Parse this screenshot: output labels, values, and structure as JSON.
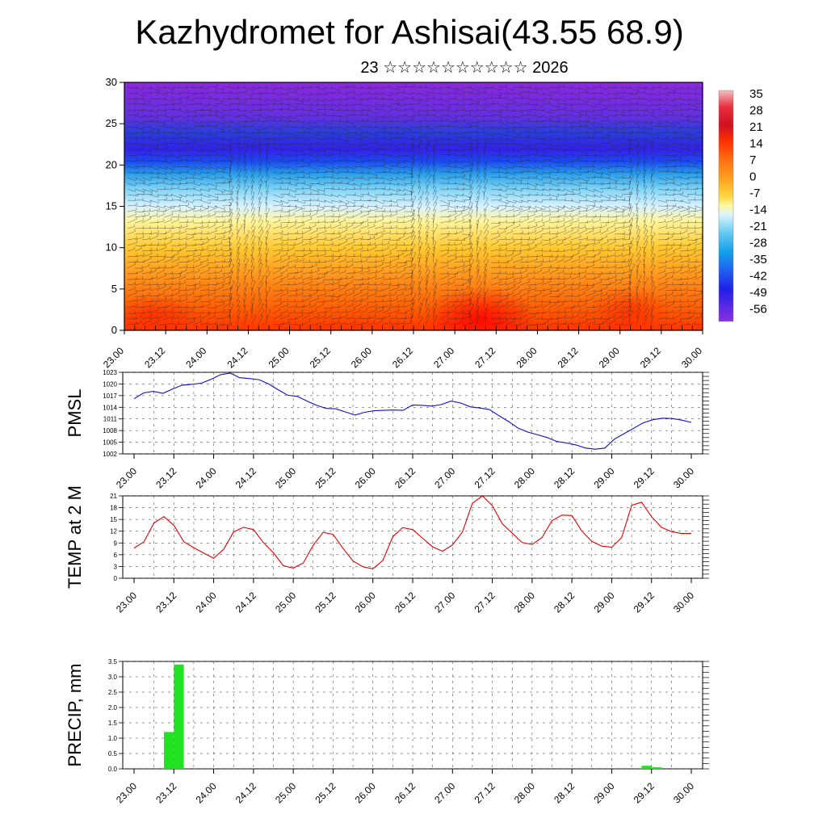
{
  "title": "Kazhydromet for Ashisai(43.55 68.9)",
  "subtitle": "23 ☆☆☆☆☆☆☆☆☆☆ 2026",
  "x_labels": [
    "23.00",
    "23.12",
    "24.00",
    "24.12",
    "25.00",
    "25.12",
    "26.00",
    "26.12",
    "27.00",
    "27.12",
    "28.00",
    "28.12",
    "29.00",
    "29.12",
    "30.00"
  ],
  "chart_data": [
    {
      "type": "heatmap",
      "name": "upper-air temperature / wind cross-section",
      "y_ticks": [
        "0",
        "5",
        "10",
        "15",
        "20",
        "25",
        "30"
      ],
      "ylim": [
        0,
        30
      ],
      "colorbar_labels": [
        "35",
        "28",
        "21",
        "14",
        "7",
        "0",
        "-7",
        "-14",
        "-21",
        "-28",
        "-35",
        "-42",
        "-49",
        "-56"
      ]
    },
    {
      "type": "line",
      "ylabel": "PMSL",
      "ylim": [
        1002,
        1023
      ],
      "y_ticks": [
        "1023",
        "1020",
        "1017",
        "1014",
        "1011",
        "1008",
        "1005",
        "1002"
      ],
      "color": "#1010c0",
      "values": [
        1016.2,
        1017.7,
        1018.1,
        1017.6,
        1018.7,
        1019.7,
        1019.9,
        1020.2,
        1021.2,
        1022.4,
        1022.8,
        1021.6,
        1021.4,
        1021.1,
        1020.0,
        1018.5,
        1017.1,
        1016.8,
        1015.6,
        1014.5,
        1013.7,
        1013.6,
        1012.8,
        1012.0,
        1012.7,
        1013.1,
        1013.2,
        1013.3,
        1013.2,
        1014.6,
        1014.5,
        1014.3,
        1014.7,
        1015.6,
        1015.1,
        1014.1,
        1013.8,
        1013.4,
        1011.8,
        1010.3,
        1008.6,
        1007.6,
        1006.9,
        1006.2,
        1005.2,
        1004.8,
        1004.3,
        1003.5,
        1003.2,
        1003.5,
        1005.8,
        1007.2,
        1008.6,
        1010.0,
        1010.8,
        1011.2,
        1011.1,
        1010.7,
        1010.1
      ]
    },
    {
      "type": "line",
      "ylabel": "TEMP at 2 M",
      "ylim": [
        0,
        21
      ],
      "y_ticks": [
        "21",
        "18",
        "15",
        "12",
        "9",
        "6",
        "3",
        "0"
      ],
      "color": "#e00000",
      "values": [
        7.7,
        9.3,
        14.1,
        15.7,
        13.5,
        9.3,
        7.8,
        6.4,
        5.1,
        7.4,
        11.8,
        13.0,
        12.4,
        9.1,
        6.5,
        3.2,
        2.6,
        3.9,
        8.4,
        11.7,
        11.2,
        7.6,
        4.4,
        2.9,
        2.4,
        4.5,
        10.6,
        12.9,
        12.4,
        10.2,
        8.0,
        6.9,
        8.5,
        11.8,
        19.1,
        21.0,
        18.5,
        13.9,
        11.5,
        9.1,
        8.6,
        10.4,
        14.7,
        16.1,
        16.0,
        12.0,
        9.4,
        8.2,
        7.9,
        10.4,
        18.6,
        19.4,
        15.7,
        13.0,
        11.9,
        11.4,
        11.4
      ]
    },
    {
      "type": "bar",
      "ylabel": "PRECIP, mm",
      "ylim": [
        0,
        3.5
      ],
      "y_ticks": [
        "3.5",
        "3.0",
        "2.5",
        "2.0",
        "1.5",
        "1.0",
        "0.5",
        "0.0"
      ],
      "color": "#22e022",
      "bars": [
        {
          "start_hour": 9,
          "end_hour": 12,
          "value": 1.2
        },
        {
          "start_hour": 12,
          "end_hour": 15,
          "value": 3.4
        },
        {
          "start_hour": 153,
          "end_hour": 156,
          "value": 0.1
        },
        {
          "start_hour": 156,
          "end_hour": 159,
          "value": 0.05
        }
      ]
    }
  ]
}
